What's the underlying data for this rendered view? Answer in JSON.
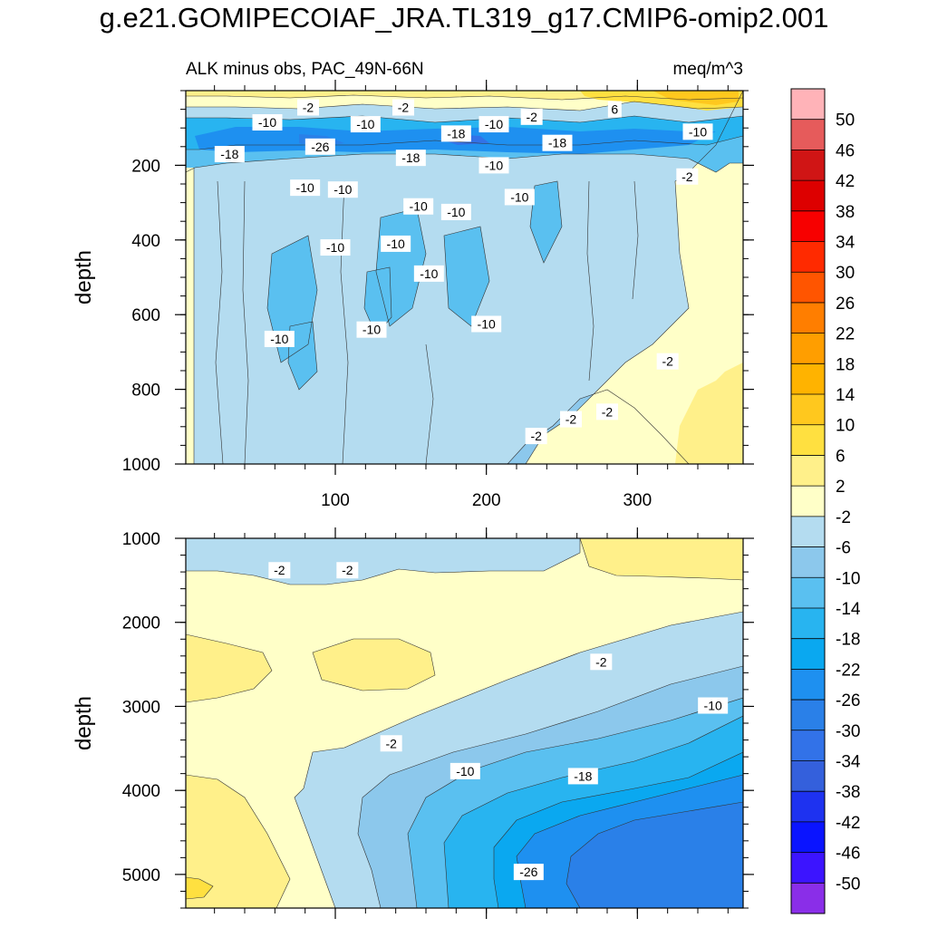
{
  "title": "g.e21.GOMIPECOIAF_JRA.TL319_g17.CMIP6-omip2.001",
  "chart_data": [
    {
      "type": "contour",
      "subtitle": "ALK minus obs, PAC_49N-66N",
      "units": "meq/m^3",
      "ylabel": "depth",
      "xlabel": "",
      "xlim": [
        1,
        370
      ],
      "ylim": [
        1000,
        0
      ],
      "xticks": [
        100,
        200,
        300
      ],
      "yticks": [
        200,
        400,
        600,
        800,
        1000
      ],
      "contour_labels": [
        {
          "text": "-10",
          "x": 55,
          "y": 85
        },
        {
          "text": "-2",
          "x": 82,
          "y": 45
        },
        {
          "text": "-2",
          "x": 145,
          "y": 45
        },
        {
          "text": "-10",
          "x": 120,
          "y": 90
        },
        {
          "text": "-18",
          "x": 30,
          "y": 170
        },
        {
          "text": "-26",
          "x": 90,
          "y": 150
        },
        {
          "text": "-18",
          "x": 150,
          "y": 180
        },
        {
          "text": "-18",
          "x": 180,
          "y": 115
        },
        {
          "text": "-10",
          "x": 205,
          "y": 90
        },
        {
          "text": "-2",
          "x": 230,
          "y": 70
        },
        {
          "text": "6",
          "x": 285,
          "y": 50
        },
        {
          "text": "-18",
          "x": 247,
          "y": 140
        },
        {
          "text": "-10",
          "x": 340,
          "y": 110
        },
        {
          "text": "-10",
          "x": 205,
          "y": 200
        },
        {
          "text": "-10",
          "x": 80,
          "y": 260
        },
        {
          "text": "-10",
          "x": 105,
          "y": 265
        },
        {
          "text": "-10",
          "x": 155,
          "y": 310
        },
        {
          "text": "-10",
          "x": 180,
          "y": 325
        },
        {
          "text": "-10",
          "x": 222,
          "y": 285
        },
        {
          "text": "-2",
          "x": 333,
          "y": 230
        },
        {
          "text": "-10",
          "x": 100,
          "y": 420
        },
        {
          "text": "-10",
          "x": 140,
          "y": 410
        },
        {
          "text": "-10",
          "x": 162,
          "y": 490
        },
        {
          "text": "-10",
          "x": 200,
          "y": 625
        },
        {
          "text": "-10",
          "x": 63,
          "y": 665
        },
        {
          "text": "-10",
          "x": 124,
          "y": 640
        },
        {
          "text": "-2",
          "x": 320,
          "y": 725
        },
        {
          "text": "-2",
          "x": 280,
          "y": 860
        },
        {
          "text": "-2",
          "x": 256,
          "y": 880
        },
        {
          "text": "-2",
          "x": 233,
          "y": 925
        }
      ]
    },
    {
      "type": "contour",
      "subtitle": "",
      "units": "",
      "ylabel": "depth",
      "xlabel": "",
      "xlim": [
        1,
        370
      ],
      "ylim": [
        5400,
        1000
      ],
      "xticks": [
        100,
        200,
        300
      ],
      "yticks": [
        1000,
        2000,
        3000,
        4000,
        5000
      ],
      "contour_labels": [
        {
          "text": "-2",
          "x": 63,
          "y": 1380
        },
        {
          "text": "-2",
          "x": 108,
          "y": 1380
        },
        {
          "text": "-2",
          "x": 276,
          "y": 2470
        },
        {
          "text": "-10",
          "x": 350,
          "y": 2990
        },
        {
          "text": "-2",
          "x": 137,
          "y": 3440
        },
        {
          "text": "-10",
          "x": 186,
          "y": 3770
        },
        {
          "text": "-18",
          "x": 264,
          "y": 3830
        },
        {
          "text": "-26",
          "x": 228,
          "y": 4970
        }
      ]
    }
  ],
  "colorbar": {
    "labels": [
      "50",
      "46",
      "42",
      "38",
      "34",
      "30",
      "26",
      "22",
      "18",
      "14",
      "10",
      "6",
      "2",
      "-2",
      "-6",
      "-10",
      "-14",
      "-18",
      "-22",
      "-26",
      "-30",
      "-34",
      "-38",
      "-42",
      "-46",
      "-50"
    ],
    "colors": [
      "#ffb3b8",
      "#e65b5b",
      "#d01515",
      "#dd0000",
      "#f70000",
      "#ff2a00",
      "#ff5500",
      "#ff7e00",
      "#ff9e00",
      "#ffb300",
      "#ffc81e",
      "#ffe040",
      "#fff08a",
      "#ffffc8",
      "#b4dcf0",
      "#8cc8ec",
      "#5ac0f0",
      "#28b4f0",
      "#0aa8f0",
      "#1e90f0",
      "#2a80e8",
      "#3272e8",
      "#3460dc",
      "#1e32f0",
      "#0a14ff",
      "#3c14ff",
      "#8a2ee8"
    ]
  }
}
